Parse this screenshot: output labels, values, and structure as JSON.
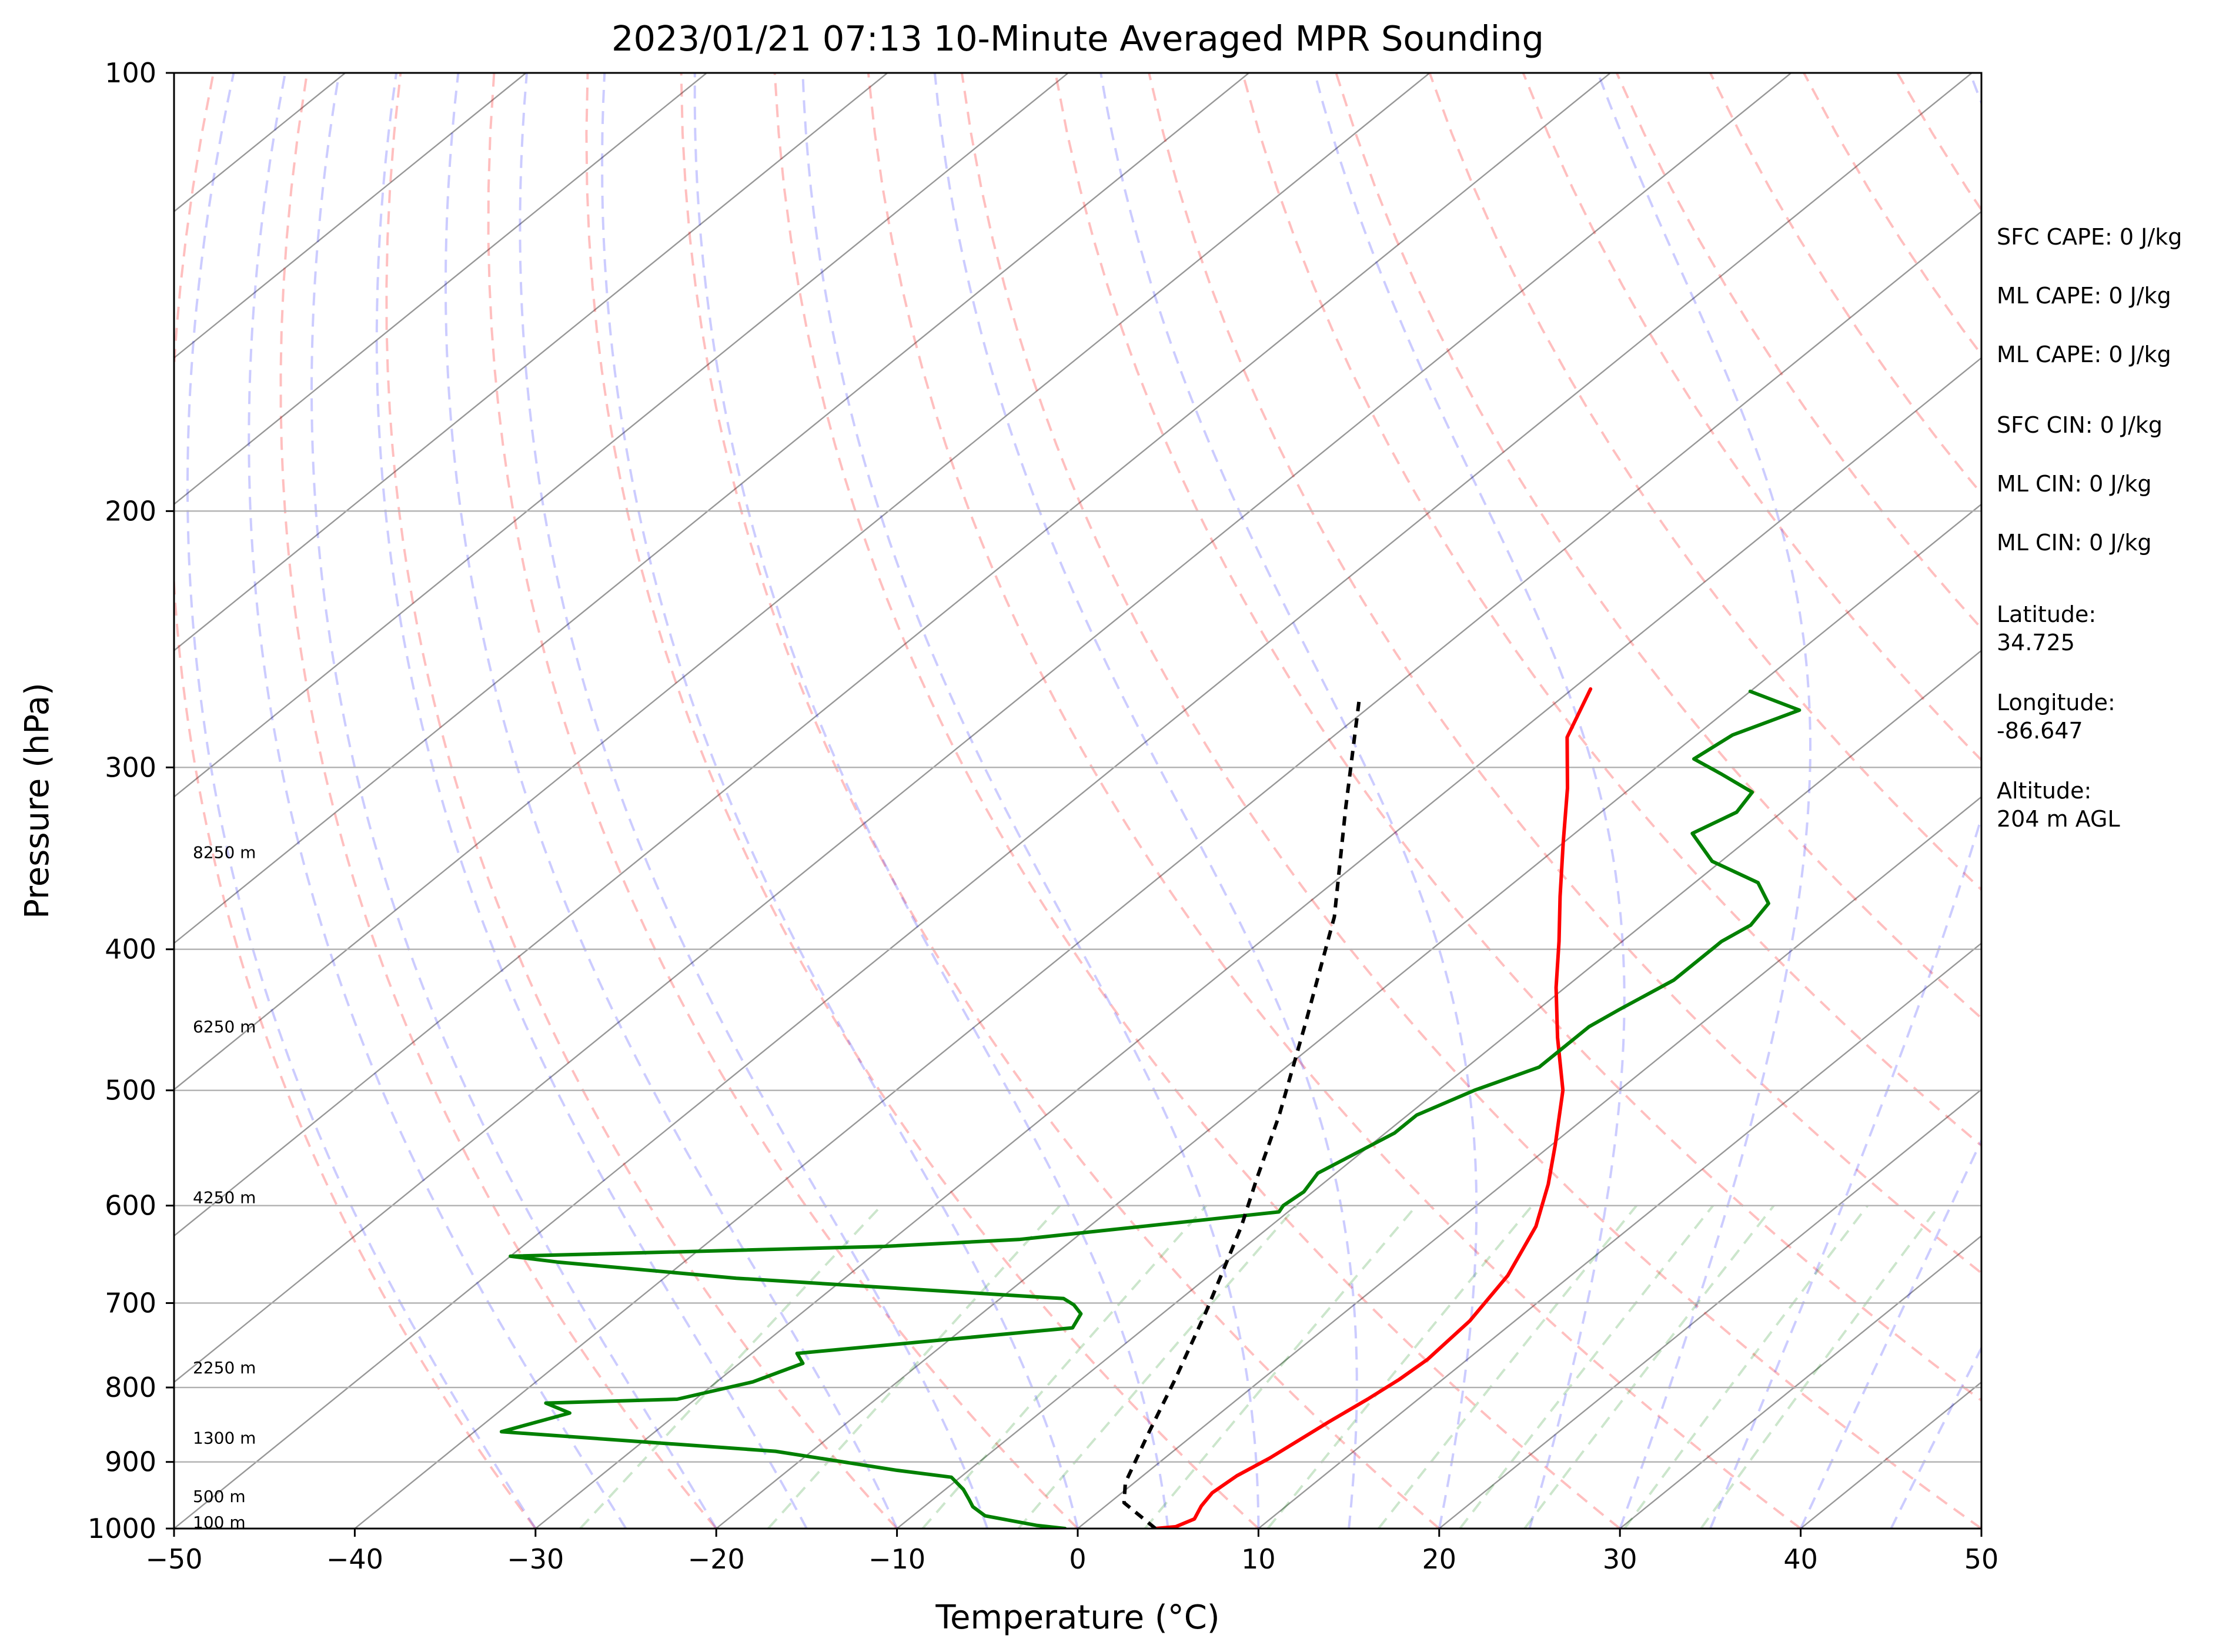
{
  "chart_data": {
    "type": "skew-t",
    "title": "2023/01/21 07:13 10-Minute Averaged MPR Sounding",
    "xlabel": "Temperature (°C)",
    "ylabel": "Pressure (hPa)",
    "xlim": [
      -50,
      50
    ],
    "ylim": [
      1000,
      100
    ],
    "y_scale": "log",
    "grid": true,
    "x_ticks": [
      -50,
      -40,
      -30,
      -20,
      -10,
      0,
      10,
      20,
      30,
      40,
      50
    ],
    "x_tick_labels": [
      "−50",
      "−40",
      "−30",
      "−20",
      "−10",
      "0",
      "10",
      "20",
      "30",
      "40",
      "50"
    ],
    "y_ticks": [
      1000,
      900,
      800,
      700,
      600,
      500,
      400,
      300,
      200,
      100
    ],
    "y_tick_labels": [
      "1000",
      "900",
      "800",
      "700",
      "600",
      "500",
      "400",
      "300",
      "200",
      "100"
    ],
    "height_labels": [
      {
        "text": "100 m",
        "pressure": 990
      },
      {
        "text": "500 m",
        "pressure": 950
      },
      {
        "text": "1300 m",
        "pressure": 866
      },
      {
        "text": "2250 m",
        "pressure": 775
      },
      {
        "text": "4250 m",
        "pressure": 592
      },
      {
        "text": "6250 m",
        "pressure": 452
      },
      {
        "text": "8250 m",
        "pressure": 343
      }
    ],
    "series": [
      {
        "color": "#ff0000",
        "style": "solid",
        "points": [
          [
            4.3,
            1000
          ],
          [
            5.3,
            997
          ],
          [
            5.8,
            985
          ],
          [
            5.3,
            965
          ],
          [
            5.0,
            945
          ],
          [
            5.2,
            920
          ],
          [
            5.8,
            895
          ],
          [
            6.2,
            870
          ],
          [
            6.6,
            845
          ],
          [
            7.2,
            815
          ],
          [
            7.6,
            790
          ],
          [
            7.8,
            765
          ],
          [
            7.5,
            720
          ],
          [
            6.5,
            670
          ],
          [
            4.7,
            620
          ],
          [
            2.5,
            580
          ],
          [
            0.2,
            545
          ],
          [
            -3.1,
            500
          ],
          [
            -7.0,
            460
          ],
          [
            -10.5,
            425
          ],
          [
            -13.5,
            395
          ],
          [
            -16.5,
            368
          ],
          [
            -20.0,
            338
          ],
          [
            -23.5,
            310
          ],
          [
            -27.0,
            286
          ],
          [
            -29.0,
            265
          ]
        ]
      },
      {
        "color": "#008000",
        "style": "solid",
        "points": [
          [
            -0.7,
            1000
          ],
          [
            -2.5,
            995
          ],
          [
            -6.0,
            980
          ],
          [
            -7.3,
            966
          ],
          [
            -8.0,
            955
          ],
          [
            -9.0,
            940
          ],
          [
            -10.5,
            922
          ],
          [
            -14.0,
            912
          ],
          [
            -22.0,
            885
          ],
          [
            -38.5,
            858
          ],
          [
            -36.0,
            833
          ],
          [
            -38.0,
            820
          ],
          [
            -31.0,
            815
          ],
          [
            -28.0,
            793
          ],
          [
            -26.5,
            770
          ],
          [
            -27.5,
            758
          ],
          [
            -14.0,
            728
          ],
          [
            -14.5,
            712
          ],
          [
            -15.5,
            702
          ],
          [
            -16.5,
            695
          ],
          [
            -36.0,
            673
          ],
          [
            -47.0,
            656
          ],
          [
            -50.0,
            650
          ],
          [
            -30.0,
            640
          ],
          [
            -23.0,
            633
          ],
          [
            -10.5,
            606
          ],
          [
            -10.7,
            600
          ],
          [
            -10.5,
            587
          ],
          [
            -11.0,
            570
          ],
          [
            -9.5,
            535
          ],
          [
            -9.5,
            520
          ],
          [
            -8.0,
            500
          ],
          [
            -6.0,
            482
          ],
          [
            -6.0,
            468
          ],
          [
            -6.0,
            452
          ],
          [
            -5.5,
            440
          ],
          [
            -4.5,
            420
          ],
          [
            -4.5,
            395
          ],
          [
            -4.0,
            385
          ],
          [
            -4.5,
            372
          ],
          [
            -6.5,
            360
          ],
          [
            -10.5,
            348
          ],
          [
            -13.5,
            333
          ],
          [
            -12.5,
            322
          ],
          [
            -13.0,
            312
          ],
          [
            -16.0,
            303
          ],
          [
            -18.5,
            296
          ],
          [
            -18.0,
            285
          ],
          [
            -16.0,
            274
          ],
          [
            -20.0,
            266
          ]
        ]
      },
      {
        "color": "#000000",
        "style": "dashed",
        "points": [
          [
            4.3,
            1000
          ],
          [
            0.8,
            960
          ],
          [
            -0.5,
            930
          ],
          [
            -2.6,
            860
          ],
          [
            -4.8,
            790
          ],
          [
            -7.7,
            710
          ],
          [
            -9.8,
            660
          ],
          [
            -11.6,
            620
          ],
          [
            -14.0,
            575
          ],
          [
            -17.1,
            520
          ],
          [
            -21.9,
            450
          ],
          [
            -27.6,
            380
          ],
          [
            -34.4,
            320
          ],
          [
            -41.0,
            270
          ]
        ]
      }
    ],
    "background_lines": [
      {
        "kind": "isotherms",
        "color": "#888888"
      },
      {
        "kind": "dry_adiabats",
        "color": "#ff9999"
      },
      {
        "kind": "moist_adiabats",
        "color": "#9999ff"
      },
      {
        "kind": "mixing_ratio_lines",
        "color": "#99cc99"
      }
    ],
    "annotations": [
      "SFC CAPE: 0 J/kg",
      "ML CAPE: 0 J/kg",
      "ML CAPE: 0 J/kg",
      "SFC CIN: 0 J/kg",
      "ML CIN: 0 J/kg",
      "ML CIN: 0 J/kg",
      "Latitude:",
      "34.725",
      "Longitude:",
      "-86.647",
      "Altitude:",
      "204 m AGL"
    ]
  }
}
